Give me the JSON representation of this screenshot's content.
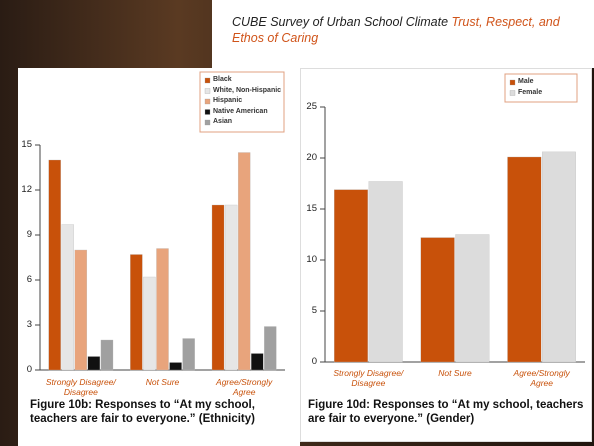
{
  "header": {
    "title": "CUBE Survey of Urban School Climate",
    "subtitle": "Trust, Respect, and Ethos of Caring"
  },
  "chart_data": [
    {
      "type": "bar",
      "title": "Figure 10b: Responses to “At my school, teachers are fair to everyone.” (Ethnicity)",
      "categories": [
        "Strongly Disagree/ Disagree",
        "Not Sure",
        "Agree/Strongly Agree"
      ],
      "series": [
        {
          "name": "Black",
          "color": "#c8510a",
          "values": [
            14,
            7.7,
            11
          ]
        },
        {
          "name": "White, Non-Hispanic",
          "color": "#e6e6e6",
          "values": [
            9.7,
            6.2,
            11
          ]
        },
        {
          "name": "Hispanic",
          "color": "#e8a47c",
          "values": [
            8,
            8.1,
            14.5
          ]
        },
        {
          "name": "Native American",
          "color": "#111111",
          "values": [
            0.9,
            0.5,
            1.1
          ]
        },
        {
          "name": "Asian",
          "color": "#a0a0a0",
          "values": [
            2,
            2.1,
            2.9
          ]
        }
      ],
      "ylim": [
        0,
        15
      ],
      "yticks": [
        0,
        3,
        6,
        9,
        12,
        15
      ],
      "legend": "top-right"
    },
    {
      "type": "bar",
      "title": "Figure 10d: Responses to “At my school, teachers are fair to everyone.” (Gender)",
      "categories": [
        "Strongly Disagree/ Disagree",
        "Not Sure",
        "Agree/Strongly Agree"
      ],
      "series": [
        {
          "name": "Male",
          "color": "#c8510a",
          "values": [
            16.9,
            12.2,
            20.1
          ]
        },
        {
          "name": "Female",
          "color": "#dcdcdc",
          "values": [
            17.7,
            12.5,
            20.6
          ]
        }
      ],
      "ylim": [
        0,
        25
      ],
      "yticks": [
        0,
        5,
        10,
        15,
        20,
        25
      ],
      "legend": "top-right"
    }
  ]
}
